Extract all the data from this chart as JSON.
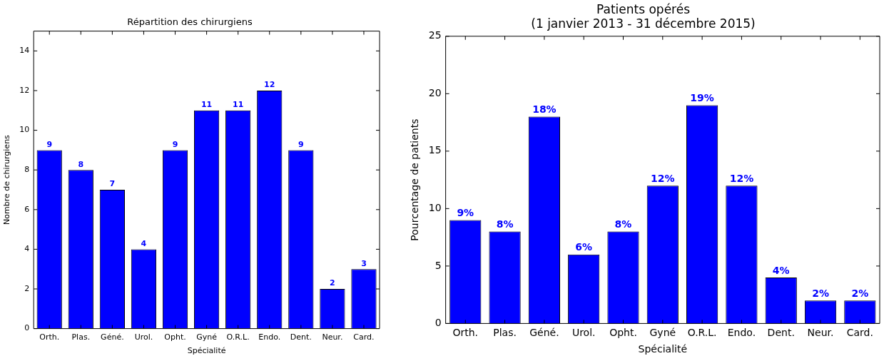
{
  "chart_data": [
    {
      "type": "bar",
      "title": "Répartition des chirurgiens",
      "xlabel": "Spécialité",
      "ylabel": "Nombre de chirurgiens",
      "categories": [
        "Orth.",
        "Plas.",
        "Géné.",
        "Urol.",
        "Opht.",
        "Gyné",
        "O.R.L.",
        "Endo.",
        "Dent.",
        "Neur.",
        "Card."
      ],
      "values": [
        9,
        8,
        7,
        4,
        9,
        11,
        11,
        12,
        9,
        2,
        3
      ],
      "color": "#0000ff",
      "ylim": [
        0,
        15
      ],
      "yticks": [
        0,
        2,
        4,
        6,
        8,
        10,
        12,
        14
      ],
      "data_labels": true,
      "grid": false,
      "legend": false
    },
    {
      "type": "bar",
      "title": "Patients opérés",
      "subtitle": "(1 janvier 2013 - 31 décembre 2015)",
      "xlabel": "Spécialité",
      "ylabel": "Pourcentage de patients",
      "categories": [
        "Orth.",
        "Plas.",
        "Géné.",
        "Urol.",
        "Opht.",
        "Gyné",
        "O.R.L.",
        "Endo.",
        "Dent.",
        "Neur.",
        "Card."
      ],
      "values": [
        9,
        8,
        18,
        6,
        8,
        12,
        19,
        12,
        4,
        2,
        2
      ],
      "value_labels": [
        "9%",
        "8%",
        "18%",
        "6%",
        "8%",
        "12%",
        "19%",
        "12%",
        "4%",
        "2%",
        "2%"
      ],
      "color": "#0000ff",
      "ylim": [
        0,
        25
      ],
      "yticks": [
        0,
        5,
        10,
        15,
        20,
        25
      ],
      "grid": false,
      "legend": false
    }
  ]
}
